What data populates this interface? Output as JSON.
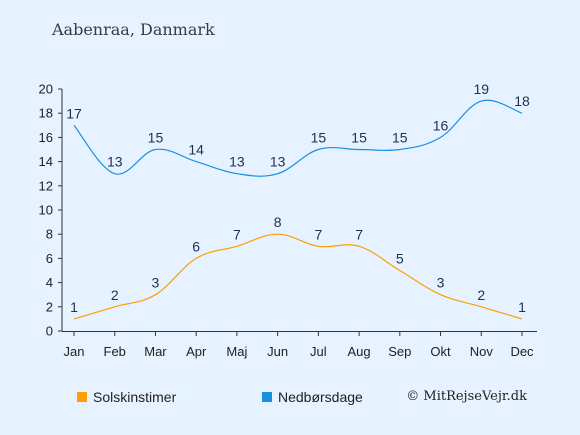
{
  "chart_data": {
    "type": "line",
    "title": "Aabenraa, Danmark",
    "categories": [
      "Jan",
      "Feb",
      "Mar",
      "Apr",
      "Maj",
      "Jun",
      "Jul",
      "Aug",
      "Sep",
      "Okt",
      "Nov",
      "Dec"
    ],
    "ylim": [
      0,
      20
    ],
    "yticks": [
      0,
      2,
      4,
      6,
      8,
      10,
      12,
      14,
      16,
      18,
      20
    ],
    "series": [
      {
        "name": "Solskinstimer",
        "color": "#ff9e00",
        "values": [
          1,
          2,
          3,
          6,
          7,
          8,
          7,
          7,
          5,
          3,
          2,
          1
        ]
      },
      {
        "name": "Nedbørsdage",
        "color": "#1a8fe0",
        "values": [
          17,
          13,
          15,
          14,
          13,
          13,
          15,
          15,
          15,
          16,
          19,
          18
        ]
      }
    ],
    "grid": false,
    "legend_position": "bottom"
  },
  "credit": "© MitRejseVejr.dk"
}
